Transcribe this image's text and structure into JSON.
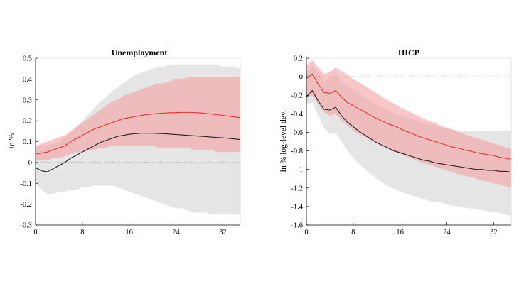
{
  "chart_data": [
    {
      "type": "area",
      "title": "Unemployment",
      "xlabel": "",
      "ylabel": "In %",
      "xlim": [
        0,
        35
      ],
      "ylim": [
        -0.3,
        0.5
      ],
      "xticks": [
        0,
        8,
        16,
        24,
        32
      ],
      "yticks": [
        -0.3,
        -0.2,
        -0.1,
        0,
        0.1,
        0.2,
        0.3,
        0.4,
        0.5
      ],
      "ytick_labels": [
        "-0.3",
        "-0.2",
        "-0.1",
        "0",
        "0.1",
        "0.2",
        "0.3",
        "0.4",
        "0.5"
      ],
      "zero_line": true,
      "grid": false,
      "x": [
        0,
        1,
        2,
        3,
        4,
        5,
        6,
        7,
        8,
        9,
        10,
        11,
        12,
        13,
        14,
        15,
        16,
        17,
        18,
        19,
        20,
        21,
        22,
        23,
        24,
        25,
        26,
        27,
        28,
        29,
        30,
        31,
        32,
        33,
        34,
        35
      ],
      "series": [
        {
          "role": "band",
          "color": "#e5e5e5",
          "lower": [
            -0.1,
            -0.13,
            -0.15,
            -0.15,
            -0.14,
            -0.14,
            -0.13,
            -0.13,
            -0.12,
            -0.12,
            -0.11,
            -0.11,
            -0.11,
            -0.11,
            -0.12,
            -0.13,
            -0.14,
            -0.15,
            -0.16,
            -0.17,
            -0.18,
            -0.19,
            -0.2,
            -0.21,
            -0.22,
            -0.22,
            -0.23,
            -0.24,
            -0.24,
            -0.24,
            -0.25,
            -0.25,
            -0.25,
            -0.25,
            -0.25,
            -0.25
          ],
          "upper": [
            0.07,
            0.08,
            0.08,
            0.09,
            0.1,
            0.12,
            0.14,
            0.17,
            0.2,
            0.23,
            0.26,
            0.29,
            0.31,
            0.34,
            0.36,
            0.38,
            0.4,
            0.42,
            0.43,
            0.44,
            0.45,
            0.46,
            0.46,
            0.47,
            0.47,
            0.47,
            0.47,
            0.47,
            0.47,
            0.47,
            0.47,
            0.47,
            0.46,
            0.46,
            0.46,
            0.45
          ]
        },
        {
          "role": "band",
          "color": "#f4a3a3",
          "opacity": 0.62,
          "lower": [
            0.01,
            0.01,
            0.01,
            0.02,
            0.02,
            0.03,
            0.04,
            0.05,
            0.05,
            0.06,
            0.06,
            0.07,
            0.07,
            0.08,
            0.08,
            0.08,
            0.08,
            0.08,
            0.08,
            0.08,
            0.08,
            0.07,
            0.07,
            0.07,
            0.07,
            0.07,
            0.07,
            0.06,
            0.06,
            0.06,
            0.06,
            0.05,
            0.05,
            0.05,
            0.05,
            0.05
          ],
          "upper": [
            0.08,
            0.09,
            0.1,
            0.11,
            0.12,
            0.13,
            0.15,
            0.17,
            0.19,
            0.21,
            0.23,
            0.25,
            0.27,
            0.29,
            0.3,
            0.32,
            0.33,
            0.34,
            0.35,
            0.36,
            0.37,
            0.38,
            0.38,
            0.39,
            0.4,
            0.4,
            0.41,
            0.41,
            0.41,
            0.41,
            0.41,
            0.41,
            0.41,
            0.41,
            0.41,
            0.41
          ]
        },
        {
          "role": "line",
          "color": "#e8312b",
          "values": [
            0.04,
            0.045,
            0.05,
            0.06,
            0.07,
            0.08,
            0.1,
            0.115,
            0.13,
            0.145,
            0.16,
            0.17,
            0.18,
            0.19,
            0.2,
            0.21,
            0.215,
            0.22,
            0.225,
            0.23,
            0.232,
            0.235,
            0.237,
            0.238,
            0.239,
            0.24,
            0.24,
            0.24,
            0.238,
            0.235,
            0.232,
            0.229,
            0.226,
            0.222,
            0.218,
            0.215
          ]
        },
        {
          "role": "line",
          "color": "#222222",
          "values": [
            -0.025,
            -0.04,
            -0.045,
            -0.03,
            -0.015,
            0.0,
            0.02,
            0.035,
            0.05,
            0.065,
            0.08,
            0.095,
            0.105,
            0.115,
            0.125,
            0.13,
            0.135,
            0.138,
            0.14,
            0.14,
            0.14,
            0.139,
            0.138,
            0.136,
            0.134,
            0.132,
            0.13,
            0.128,
            0.126,
            0.124,
            0.122,
            0.12,
            0.118,
            0.116,
            0.113,
            0.11
          ]
        }
      ]
    },
    {
      "type": "area",
      "title": "HICP",
      "xlabel": "",
      "ylabel": "In % log-level dev.",
      "xlim": [
        0,
        35
      ],
      "ylim": [
        -1.6,
        0.2
      ],
      "xticks": [
        0,
        8,
        16,
        24,
        32
      ],
      "yticks": [
        -1.6,
        -1.4,
        -1.2,
        -1.0,
        -0.8,
        -0.6,
        -0.4,
        -0.2,
        0,
        0.2
      ],
      "ytick_labels": [
        "-1.6",
        "-1.4",
        "-1.2",
        "-1",
        "-0.8",
        "-0.6",
        "-0.4",
        "-0.2",
        "0",
        "0.2"
      ],
      "zero_line": true,
      "grid": false,
      "x": [
        0,
        1,
        2,
        3,
        4,
        5,
        6,
        7,
        8,
        9,
        10,
        11,
        12,
        13,
        14,
        15,
        16,
        17,
        18,
        19,
        20,
        21,
        22,
        23,
        24,
        25,
        26,
        27,
        28,
        29,
        30,
        31,
        32,
        33,
        34,
        35
      ],
      "series": [
        {
          "role": "band",
          "color": "#e5e5e5",
          "lower": [
            -0.3,
            -0.28,
            -0.42,
            -0.55,
            -0.62,
            -0.6,
            -0.7,
            -0.8,
            -0.88,
            -0.94,
            -1.0,
            -1.05,
            -1.1,
            -1.14,
            -1.18,
            -1.21,
            -1.24,
            -1.26,
            -1.28,
            -1.3,
            -1.32,
            -1.34,
            -1.35,
            -1.36,
            -1.38,
            -1.39,
            -1.4,
            -1.41,
            -1.42,
            -1.43,
            -1.44,
            -1.45,
            -1.46,
            -1.47,
            -1.49,
            -1.5
          ],
          "upper": [
            0.05,
            0.1,
            0.05,
            -0.05,
            -0.02,
            0.02,
            -0.05,
            -0.1,
            -0.15,
            -0.18,
            -0.22,
            -0.26,
            -0.3,
            -0.33,
            -0.36,
            -0.39,
            -0.42,
            -0.44,
            -0.46,
            -0.48,
            -0.5,
            -0.52,
            -0.53,
            -0.55,
            -0.56,
            -0.57,
            -0.58,
            -0.58,
            -0.59,
            -0.59,
            -0.59,
            -0.59,
            -0.58,
            -0.58,
            -0.58,
            -0.58
          ]
        },
        {
          "role": "band",
          "color": "#f4a3a3",
          "opacity": 0.62,
          "lower": [
            -0.22,
            -0.2,
            -0.3,
            -0.38,
            -0.42,
            -0.4,
            -0.47,
            -0.53,
            -0.58,
            -0.62,
            -0.65,
            -0.69,
            -0.72,
            -0.75,
            -0.78,
            -0.81,
            -0.83,
            -0.86,
            -0.88,
            -0.91,
            -0.93,
            -0.95,
            -0.97,
            -0.99,
            -1.01,
            -1.03,
            -1.05,
            -1.07,
            -1.08,
            -1.1,
            -1.12,
            -1.13,
            -1.15,
            -1.16,
            -1.18,
            -1.2
          ],
          "upper": [
            0.12,
            0.18,
            0.1,
            0.03,
            0.05,
            0.1,
            0.06,
            0.02,
            -0.03,
            -0.06,
            -0.1,
            -0.14,
            -0.18,
            -0.22,
            -0.26,
            -0.29,
            -0.33,
            -0.36,
            -0.39,
            -0.42,
            -0.45,
            -0.48,
            -0.5,
            -0.53,
            -0.55,
            -0.57,
            -0.6,
            -0.62,
            -0.64,
            -0.66,
            -0.68,
            -0.7,
            -0.72,
            -0.74,
            -0.76,
            -0.78
          ]
        },
        {
          "role": "line",
          "color": "#e8312b",
          "values": [
            -0.02,
            0.03,
            -0.08,
            -0.17,
            -0.18,
            -0.15,
            -0.22,
            -0.28,
            -0.31,
            -0.35,
            -0.38,
            -0.42,
            -0.45,
            -0.48,
            -0.51,
            -0.53,
            -0.56,
            -0.59,
            -0.61,
            -0.64,
            -0.66,
            -0.68,
            -0.7,
            -0.72,
            -0.74,
            -0.76,
            -0.77,
            -0.79,
            -0.8,
            -0.82,
            -0.83,
            -0.84,
            -0.85,
            -0.87,
            -0.88,
            -0.89
          ]
        },
        {
          "role": "line",
          "color": "#222222",
          "values": [
            -0.22,
            -0.15,
            -0.26,
            -0.35,
            -0.36,
            -0.33,
            -0.42,
            -0.49,
            -0.54,
            -0.59,
            -0.63,
            -0.67,
            -0.71,
            -0.74,
            -0.77,
            -0.8,
            -0.82,
            -0.84,
            -0.86,
            -0.88,
            -0.9,
            -0.91,
            -0.93,
            -0.94,
            -0.95,
            -0.96,
            -0.97,
            -0.98,
            -0.99,
            -1.0,
            -1.0,
            -1.01,
            -1.01,
            -1.02,
            -1.02,
            -1.03
          ]
        }
      ]
    }
  ]
}
